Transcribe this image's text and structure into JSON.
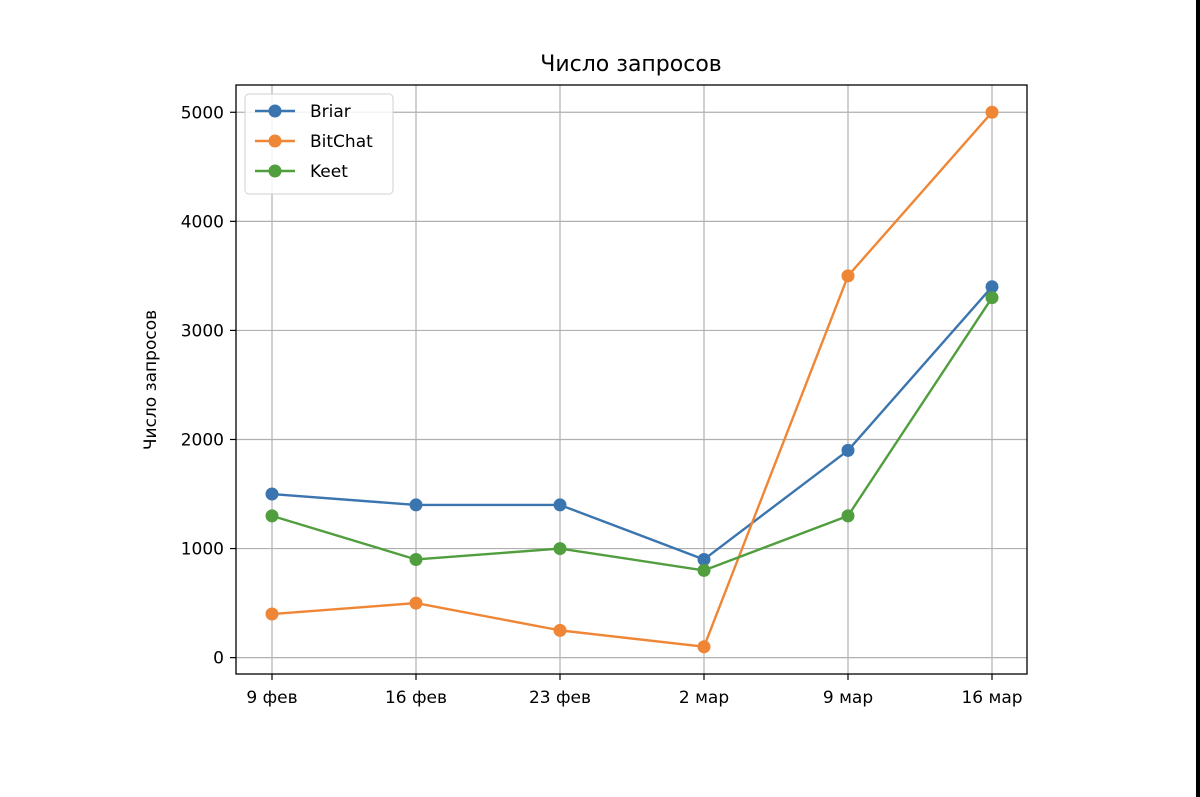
{
  "chart_data": {
    "type": "line",
    "title": "Число запросов",
    "xlabel": "",
    "ylabel": "Число запросов",
    "categories": [
      "9 фев",
      "16 фев",
      "23 фев",
      "2 мар",
      "9 мар",
      "16 мар"
    ],
    "yticks": [
      0,
      1000,
      2000,
      3000,
      4000,
      5000
    ],
    "ylim": [
      -150,
      5250
    ],
    "grid": true,
    "legend_position": "top-left",
    "series": [
      {
        "name": "Briar",
        "color": "#3b75af",
        "values": [
          1500,
          1400,
          1400,
          900,
          1900,
          3400
        ]
      },
      {
        "name": "BitChat",
        "color": "#ef8636",
        "values": [
          400,
          500,
          250,
          100,
          3500,
          5000
        ]
      },
      {
        "name": "Keet",
        "color": "#519e3e",
        "values": [
          1300,
          900,
          1000,
          800,
          1300,
          3300
        ]
      }
    ]
  }
}
